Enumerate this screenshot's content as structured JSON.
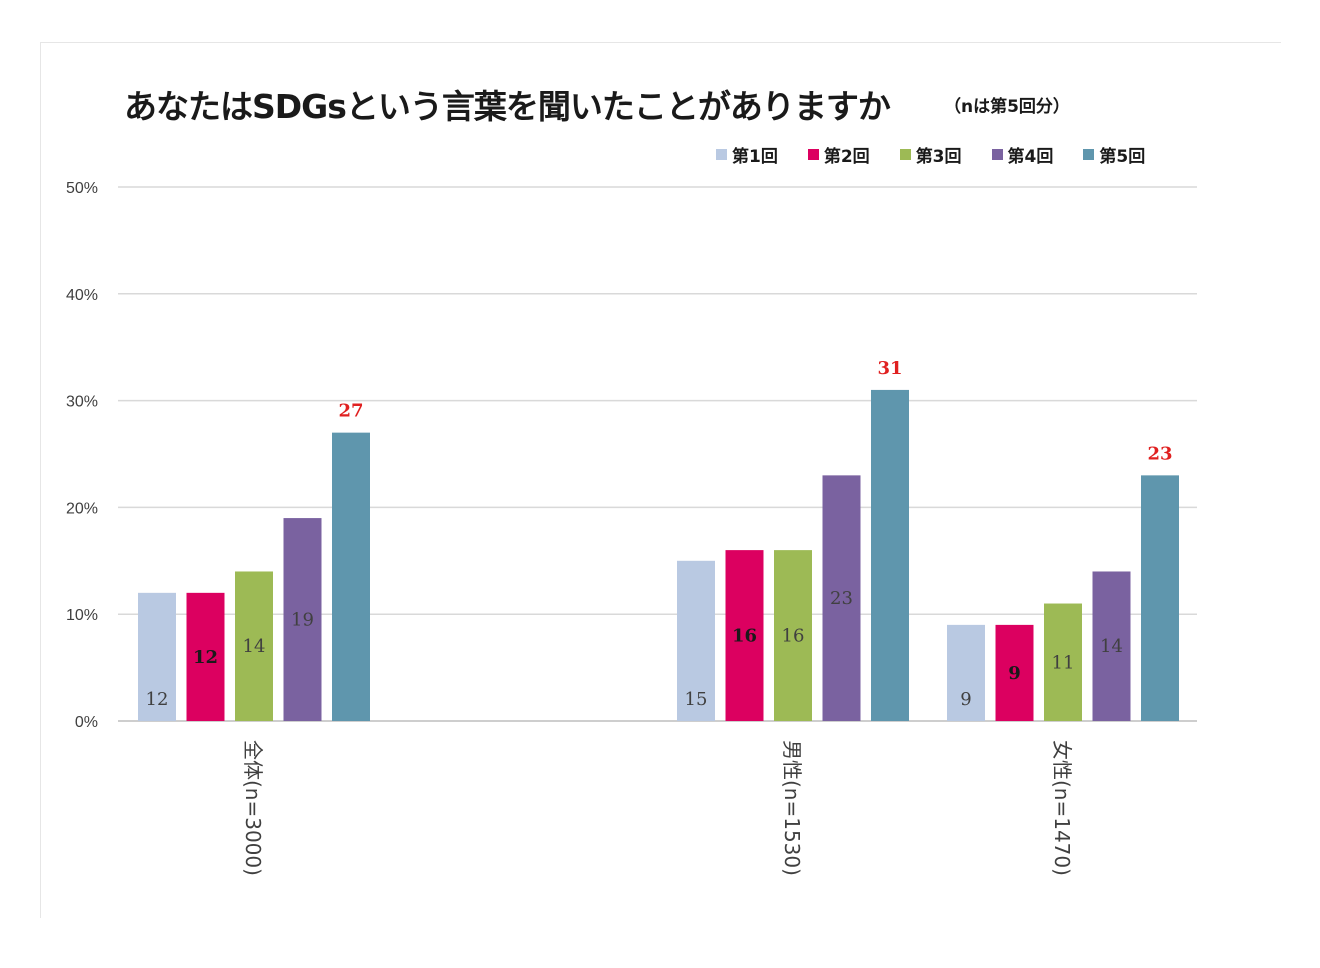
{
  "title": "あなたはSDGsという言葉を聞いたことがありますか",
  "subtitle": "（nは第5回分）",
  "chart_data": {
    "type": "bar",
    "categories": [
      "全体(n=3000)",
      "男性(n=1530)",
      "女性(n=1470)"
    ],
    "series": [
      {
        "name": "第1回",
        "color": "#b9c9e2",
        "values": [
          12,
          15,
          9
        ]
      },
      {
        "name": "第2回",
        "color": "#dc0060",
        "values": [
          12,
          16,
          9
        ]
      },
      {
        "name": "第3回",
        "color": "#9dba55",
        "values": [
          14,
          16,
          11
        ]
      },
      {
        "name": "第4回",
        "color": "#7a62a0",
        "values": [
          19,
          23,
          14
        ]
      },
      {
        "name": "第5回",
        "color": "#5f96ad",
        "values": [
          27,
          31,
          23
        ]
      }
    ],
    "data_labels": [
      [
        "12",
        "15",
        "9"
      ],
      [
        "12",
        "16",
        "9"
      ],
      [
        "14",
        "16",
        "11"
      ],
      [
        "19",
        "23",
        "14"
      ],
      [
        "27",
        "31",
        "23"
      ]
    ],
    "yticks": [
      "0%",
      "10%",
      "20%",
      "30%",
      "40%",
      "50%"
    ],
    "ylim": [
      0,
      50
    ],
    "grid": true,
    "legend": "top-right",
    "highlight_color": "#e02020"
  }
}
